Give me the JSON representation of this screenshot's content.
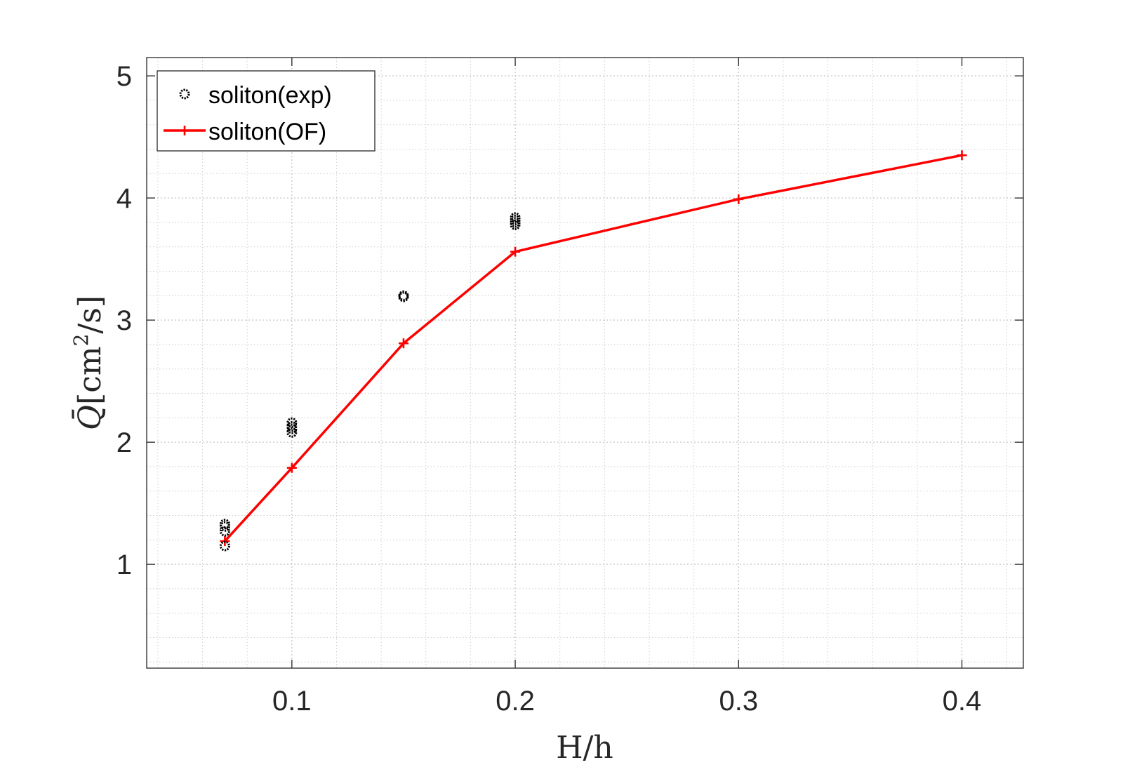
{
  "chart_data": {
    "type": "scatter",
    "title": "",
    "xlabel": "H/h",
    "ylabel_main": "Q̄",
    "ylabel_unit_open": "[cm",
    "ylabel_unit_sup": "2",
    "ylabel_unit_close": "/s]",
    "xlim": [
      0.035,
      0.4275
    ],
    "ylim": [
      0.15,
      5.15
    ],
    "xticks": [
      0.1,
      0.2,
      0.3,
      0.4
    ],
    "xtick_labels": [
      "0.1",
      "0.2",
      "0.3",
      "0.4"
    ],
    "yticks": [
      1,
      2,
      3,
      4,
      5
    ],
    "ytick_labels": [
      "1",
      "2",
      "3",
      "4",
      "5"
    ],
    "grid": true,
    "minor_grid": true,
    "legend_position": "top-left",
    "series": [
      {
        "name": "soliton(exp)",
        "type": "scatter",
        "marker": "circle",
        "color": "#000000",
        "x": [
          0.07,
          0.07,
          0.07,
          0.07,
          0.1,
          0.1,
          0.1,
          0.1,
          0.15,
          0.15,
          0.2,
          0.2,
          0.2,
          0.2
        ],
        "y": [
          1.15,
          1.27,
          1.31,
          1.33,
          2.08,
          2.11,
          2.13,
          2.16,
          3.19,
          3.2,
          3.78,
          3.8,
          3.82,
          3.84
        ]
      },
      {
        "name": "soliton(OF)",
        "type": "line",
        "marker": "plus",
        "color": "#ff0000",
        "x": [
          0.07,
          0.1,
          0.15,
          0.2,
          0.3,
          0.4
        ],
        "y": [
          1.19,
          1.79,
          2.81,
          3.56,
          3.99,
          4.35
        ]
      }
    ]
  }
}
